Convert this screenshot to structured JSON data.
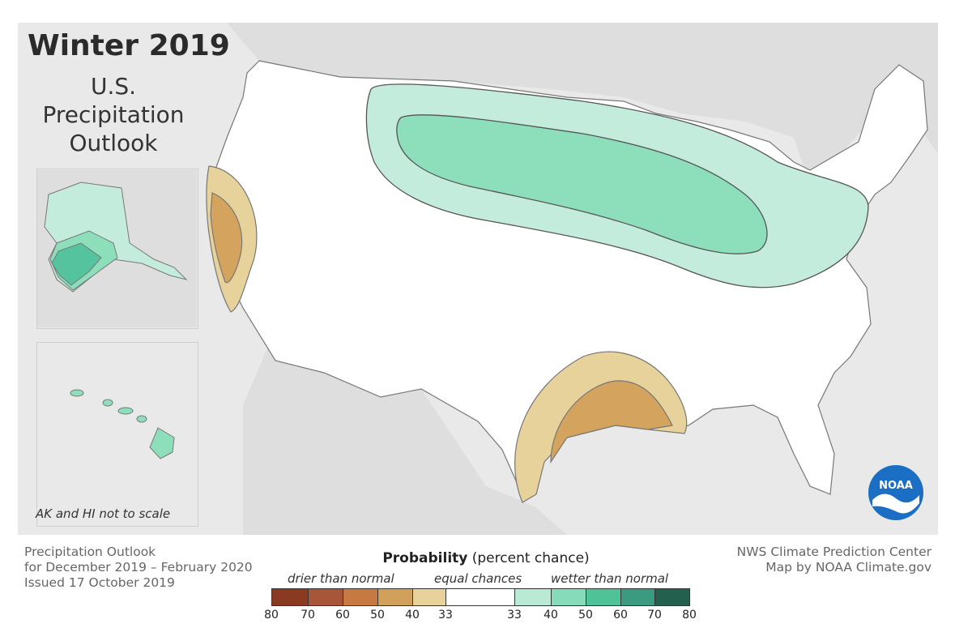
{
  "title": "Winter 2019",
  "subtitle_lines": [
    "U.S.",
    "Precipitation",
    "Outlook"
  ],
  "inset_note": "AK and HI not to scale",
  "footer_left": [
    "Precipitation Outlook",
    "for December 2019 – February 2020",
    "Issued 17 October 2019"
  ],
  "footer_right": [
    "NWS Climate Prediction Center",
    "Map by NOAA Climate.gov"
  ],
  "legend": {
    "title_bold": "Probability",
    "title_rest": " (percent chance)",
    "drier_label": "drier than normal",
    "equal_label": "equal chances",
    "wetter_label": "wetter than normal",
    "ticks": [
      "80",
      "70",
      "60",
      "50",
      "40",
      "33",
      "33",
      "40",
      "50",
      "60",
      "70",
      "80"
    ],
    "colors": {
      "dry_80_70": "#8b3a22",
      "dry_70_60": "#a7563a",
      "dry_60_50": "#c67940",
      "dry_50_40": "#d1a05a",
      "dry_40_33": "#e8d29b",
      "equal": "#ffffff",
      "wet_33_40": "#b8ead6",
      "wet_40_50": "#86dcb8",
      "wet_50_60": "#4fc29a",
      "wet_60_70": "#3b9b80",
      "wet_70_80": "#23604e"
    }
  },
  "logo_text": "NOAA",
  "colors": {
    "background": "#e9e9e9",
    "land": "#ffffff",
    "state_border": "#666666",
    "wet_33_40": "#c4ecdc",
    "wet_40_50": "#8ddfbc",
    "wet_50_60": "#55c39d",
    "dry_33_40": "#e8d29b",
    "dry_40_50": "#d4a45f"
  }
}
